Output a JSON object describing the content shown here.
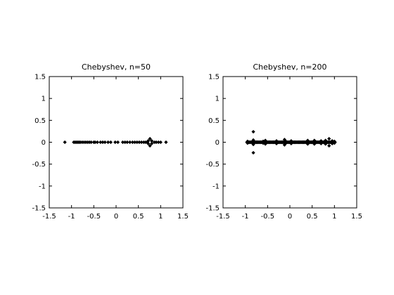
{
  "chart_data": [
    {
      "type": "scatter",
      "title": "Chebyshev, n=50",
      "xlim": [
        -1.5,
        1.5
      ],
      "ylim": [
        -1.5,
        1.5
      ],
      "xticks": [
        -1.5,
        -1,
        -0.5,
        0,
        0.5,
        1,
        1.5
      ],
      "yticks": [
        -1.5,
        -1,
        -0.5,
        0,
        0.5,
        1,
        1.5
      ],
      "xtick_labels": [
        "-1.5",
        "-1",
        "-0.5",
        "0",
        "0.5",
        "1",
        "1.5"
      ],
      "ytick_labels": [
        "-1.5",
        "-1",
        "-0.5",
        "0",
        "0.5",
        "1",
        "1.5"
      ],
      "grid": false,
      "marker_color": "#000000",
      "points": [
        [
          -1.15,
          0
        ],
        [
          -0.95,
          0
        ],
        [
          -0.92,
          0
        ],
        [
          -0.89,
          0
        ],
        [
          -0.86,
          0
        ],
        [
          -0.83,
          0
        ],
        [
          -0.8,
          0
        ],
        [
          -0.76,
          0
        ],
        [
          -0.72,
          0
        ],
        [
          -0.68,
          0
        ],
        [
          -0.64,
          0
        ],
        [
          -0.6,
          0
        ],
        [
          -0.56,
          0
        ],
        [
          -0.5,
          0
        ],
        [
          -0.47,
          0
        ],
        [
          -0.42,
          0
        ],
        [
          -0.35,
          0
        ],
        [
          -0.3,
          0
        ],
        [
          -0.25,
          0
        ],
        [
          -0.18,
          0
        ],
        [
          -0.12,
          0
        ],
        [
          -0.02,
          0
        ],
        [
          0.04,
          0
        ],
        [
          0.15,
          0
        ],
        [
          0.2,
          0
        ],
        [
          0.25,
          0
        ],
        [
          0.31,
          0
        ],
        [
          0.37,
          0
        ],
        [
          0.42,
          0
        ],
        [
          0.47,
          0
        ],
        [
          0.52,
          0
        ],
        [
          0.57,
          0
        ],
        [
          0.62,
          0
        ],
        [
          0.66,
          0
        ],
        [
          0.7,
          0
        ],
        [
          0.72,
          0.03
        ],
        [
          0.72,
          -0.03
        ],
        [
          0.76,
          0.08
        ],
        [
          0.76,
          -0.08
        ],
        [
          0.8,
          0.03
        ],
        [
          0.8,
          -0.03
        ],
        [
          0.86,
          0
        ],
        [
          0.9,
          0
        ],
        [
          0.95,
          0
        ],
        [
          1.0,
          0
        ],
        [
          1.12,
          0
        ]
      ]
    },
    {
      "type": "scatter",
      "title": "Chebyshev, n=200",
      "xlim": [
        -1.5,
        1.5
      ],
      "ylim": [
        -1.5,
        1.5
      ],
      "xticks": [
        -1.5,
        -1,
        -0.5,
        0,
        0.5,
        1,
        1.5
      ],
      "yticks": [
        -1.5,
        -1,
        -0.5,
        0,
        0.5,
        1,
        1.5
      ],
      "xtick_labels": [
        "-1.5",
        "-1",
        "-0.5",
        "0",
        "0.5",
        "1",
        "1.5"
      ],
      "ytick_labels": [
        "-1.5",
        "-1",
        "-0.5",
        "0",
        "0.5",
        "1",
        "1.5"
      ],
      "grid": false,
      "marker_color": "#000000",
      "points": [
        [
          -0.82,
          0.24
        ],
        [
          -0.82,
          -0.24
        ],
        [
          -0.82,
          0.05
        ],
        [
          -0.82,
          -0.05
        ],
        [
          -0.55,
          0.04
        ],
        [
          -0.55,
          -0.04
        ],
        [
          -0.6,
          0.02
        ],
        [
          -0.6,
          -0.02
        ],
        [
          -0.3,
          0.03
        ],
        [
          -0.3,
          -0.03
        ],
        [
          -0.12,
          0.06
        ],
        [
          -0.12,
          -0.06
        ],
        [
          -0.1,
          0.03
        ],
        [
          -0.1,
          -0.03
        ],
        [
          0.03,
          0.03
        ],
        [
          0.03,
          -0.03
        ],
        [
          0.4,
          0.04
        ],
        [
          0.4,
          -0.04
        ],
        [
          0.55,
          0.04
        ],
        [
          0.55,
          -0.04
        ],
        [
          0.7,
          0.03
        ],
        [
          0.7,
          -0.03
        ],
        [
          0.8,
          0.04
        ],
        [
          0.8,
          -0.04
        ],
        [
          0.88,
          0.08
        ],
        [
          0.88,
          -0.08
        ],
        [
          0.95,
          0.03
        ],
        [
          0.95,
          -0.03
        ],
        [
          -0.95,
          0.02
        ],
        [
          -0.95,
          -0.02
        ],
        [
          1.0,
          0.02
        ],
        [
          1.0,
          -0.02
        ]
      ],
      "dense_segments": [
        {
          "from": -0.96,
          "to": 1.02,
          "y": 0
        }
      ]
    }
  ]
}
